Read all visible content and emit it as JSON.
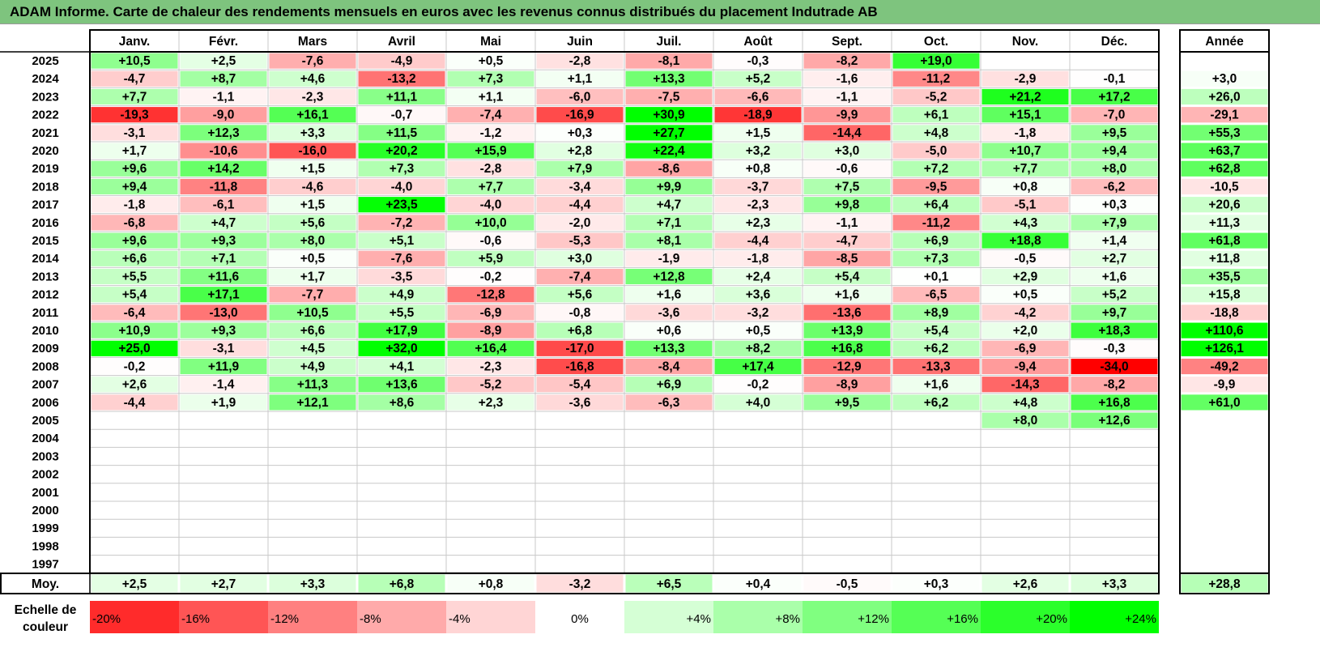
{
  "title": "ADAM Informe. Carte de chaleur des rendements mensuels en euros avec les revenus connus distribués du placement Indutrade AB",
  "chart_data": {
    "type": "heatmap",
    "months": [
      "Janv.",
      "Févr.",
      "Mars",
      "Avril",
      "Mai",
      "Juin",
      "Juil.",
      "Août",
      "Sept.",
      "Oct.",
      "Nov.",
      "Déc."
    ],
    "year_column_label": "Année",
    "average_label": "Moy.",
    "rows": [
      {
        "year": "2025",
        "values": [
          10.5,
          2.5,
          -7.6,
          -4.9,
          0.5,
          -2.8,
          -8.1,
          -0.3,
          -8.2,
          19.0,
          null,
          null
        ],
        "annual": null
      },
      {
        "year": "2024",
        "values": [
          -4.7,
          8.7,
          4.6,
          -13.2,
          7.3,
          1.1,
          13.3,
          5.2,
          -1.6,
          -11.2,
          -2.9,
          -0.1
        ],
        "annual": 3.0
      },
      {
        "year": "2023",
        "values": [
          7.7,
          -1.1,
          -2.3,
          11.1,
          1.1,
          -6.0,
          -7.5,
          -6.6,
          -1.1,
          -5.2,
          21.2,
          17.2
        ],
        "annual": 26.0
      },
      {
        "year": "2022",
        "values": [
          -19.3,
          -9.0,
          16.1,
          -0.7,
          -7.4,
          -16.9,
          30.9,
          -18.9,
          -9.9,
          6.1,
          15.1,
          -7.0
        ],
        "annual": -29.1
      },
      {
        "year": "2021",
        "values": [
          -3.1,
          12.3,
          3.3,
          11.5,
          -1.2,
          0.3,
          27.7,
          1.5,
          -14.4,
          4.8,
          -1.8,
          9.5
        ],
        "annual": 55.3
      },
      {
        "year": "2020",
        "values": [
          1.7,
          -10.6,
          -16.0,
          20.2,
          15.9,
          2.8,
          22.4,
          3.2,
          3.0,
          -5.0,
          10.7,
          9.4
        ],
        "annual": 63.7
      },
      {
        "year": "2019",
        "values": [
          9.6,
          14.2,
          1.5,
          7.3,
          -2.8,
          7.9,
          -8.6,
          0.8,
          -0.6,
          7.2,
          7.7,
          8.0
        ],
        "annual": 62.8
      },
      {
        "year": "2018",
        "values": [
          9.4,
          -11.8,
          -4.6,
          -4.0,
          7.7,
          -3.4,
          9.9,
          -3.7,
          7.5,
          -9.5,
          0.8,
          -6.2
        ],
        "annual": -10.5
      },
      {
        "year": "2017",
        "values": [
          -1.8,
          -6.1,
          1.5,
          23.5,
          -4.0,
          -4.4,
          4.7,
          -2.3,
          9.8,
          6.4,
          -5.1,
          0.3
        ],
        "annual": 20.6
      },
      {
        "year": "2016",
        "values": [
          -6.8,
          4.7,
          5.6,
          -7.2,
          10.0,
          -2.0,
          7.1,
          2.3,
          -1.1,
          -11.2,
          4.3,
          7.9
        ],
        "annual": 11.3
      },
      {
        "year": "2015",
        "values": [
          9.6,
          9.3,
          8.0,
          5.1,
          -0.6,
          -5.3,
          8.1,
          -4.4,
          -4.7,
          6.9,
          18.8,
          1.4
        ],
        "annual": 61.8
      },
      {
        "year": "2014",
        "values": [
          6.6,
          7.1,
          0.5,
          -7.6,
          5.9,
          3.0,
          -1.9,
          -1.8,
          -8.5,
          7.3,
          -0.5,
          2.7
        ],
        "annual": 11.8
      },
      {
        "year": "2013",
        "values": [
          5.5,
          11.6,
          1.7,
          -3.5,
          -0.2,
          -7.4,
          12.8,
          2.4,
          5.4,
          0.1,
          2.9,
          1.6
        ],
        "annual": 35.5
      },
      {
        "year": "2012",
        "values": [
          5.4,
          17.1,
          -7.7,
          4.9,
          -12.8,
          5.6,
          1.6,
          3.6,
          1.6,
          -6.5,
          0.5,
          5.2
        ],
        "annual": 15.8
      },
      {
        "year": "2011",
        "values": [
          -6.4,
          -13.0,
          10.5,
          5.5,
          -6.9,
          -0.8,
          -3.6,
          -3.2,
          -13.6,
          8.9,
          -4.2,
          9.7
        ],
        "annual": -18.8
      },
      {
        "year": "2010",
        "values": [
          10.9,
          9.3,
          6.6,
          17.9,
          -8.9,
          6.8,
          0.6,
          0.5,
          13.9,
          5.4,
          2.0,
          18.3
        ],
        "annual": 110.6
      },
      {
        "year": "2009",
        "values": [
          25.0,
          -3.1,
          4.5,
          32.0,
          16.4,
          -17.0,
          13.3,
          8.2,
          16.8,
          6.2,
          -6.9,
          -0.3
        ],
        "annual": 126.1
      },
      {
        "year": "2008",
        "values": [
          -0.2,
          11.9,
          4.9,
          4.1,
          -2.3,
          -16.8,
          -8.4,
          17.4,
          -12.9,
          -13.3,
          -9.4,
          -34.0
        ],
        "annual": -49.2
      },
      {
        "year": "2007",
        "values": [
          2.6,
          -1.4,
          11.3,
          13.6,
          -5.2,
          -5.4,
          6.9,
          -0.2,
          -8.9,
          1.6,
          -14.3,
          -8.2
        ],
        "annual": -9.9
      },
      {
        "year": "2006",
        "values": [
          -4.4,
          1.9,
          12.1,
          8.6,
          2.3,
          -3.6,
          -6.3,
          4.0,
          9.5,
          6.2,
          4.8,
          16.8
        ],
        "annual": 61.0
      },
      {
        "year": "2005",
        "values": [
          null,
          null,
          null,
          null,
          null,
          null,
          null,
          null,
          null,
          null,
          8.0,
          12.6
        ],
        "annual": null
      },
      {
        "year": "2004",
        "values": [
          null,
          null,
          null,
          null,
          null,
          null,
          null,
          null,
          null,
          null,
          null,
          null
        ],
        "annual": null
      },
      {
        "year": "2003",
        "values": [
          null,
          null,
          null,
          null,
          null,
          null,
          null,
          null,
          null,
          null,
          null,
          null
        ],
        "annual": null
      },
      {
        "year": "2002",
        "values": [
          null,
          null,
          null,
          null,
          null,
          null,
          null,
          null,
          null,
          null,
          null,
          null
        ],
        "annual": null
      },
      {
        "year": "2001",
        "values": [
          null,
          null,
          null,
          null,
          null,
          null,
          null,
          null,
          null,
          null,
          null,
          null
        ],
        "annual": null
      },
      {
        "year": "2000",
        "values": [
          null,
          null,
          null,
          null,
          null,
          null,
          null,
          null,
          null,
          null,
          null,
          null
        ],
        "annual": null
      },
      {
        "year": "1999",
        "values": [
          null,
          null,
          null,
          null,
          null,
          null,
          null,
          null,
          null,
          null,
          null,
          null
        ],
        "annual": null
      },
      {
        "year": "1998",
        "values": [
          null,
          null,
          null,
          null,
          null,
          null,
          null,
          null,
          null,
          null,
          null,
          null
        ],
        "annual": null
      },
      {
        "year": "1997",
        "values": [
          null,
          null,
          null,
          null,
          null,
          null,
          null,
          null,
          null,
          null,
          null,
          null
        ],
        "annual": null
      }
    ],
    "averages": [
      2.5,
      2.7,
      3.3,
      6.8,
      0.8,
      -3.2,
      6.5,
      0.4,
      -0.5,
      0.3,
      2.6,
      3.3
    ],
    "average_annual": 28.8,
    "color_scale": {
      "title_lines": [
        "Echelle de",
        "couleur"
      ],
      "labels": [
        "-20%",
        "-16%",
        "-12%",
        "-8%",
        "-4%",
        "0%",
        "+4%",
        "+8%",
        "+12%",
        "+16%",
        "+20%",
        "+24%"
      ],
      "min_color": "#ff0000",
      "mid_color": "#ffffff",
      "max_color": "#00ff00"
    },
    "header_color": "#7ec47e"
  }
}
